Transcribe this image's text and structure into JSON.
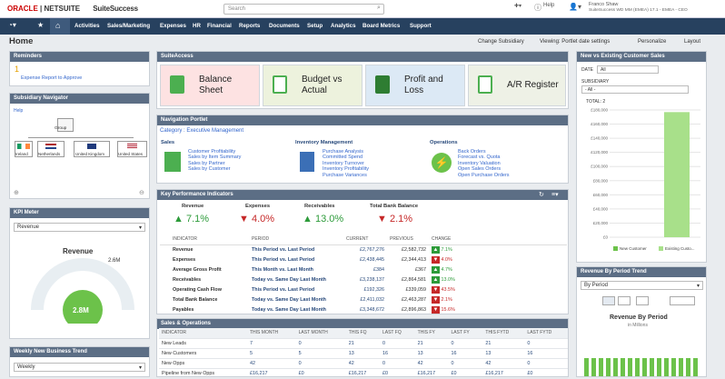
{
  "brand": {
    "oracle": "ORACLE",
    "netsuite": "NETSUITE",
    "suitesuccess": "SuiteSuccess"
  },
  "search": {
    "placeholder": "Search"
  },
  "user": {
    "help": "Help",
    "name": "Franco Shaw",
    "account": "SuiteSuccess WD MM (EMEA) 17.1 - EMEA - CEO"
  },
  "nav": [
    "Activities",
    "Sales/Marketing",
    "Expenses",
    "HR",
    "Financial",
    "Reports",
    "Documents",
    "Setup",
    "Analytics",
    "Board Metrics",
    "Support"
  ],
  "page": {
    "title": "Home",
    "change_subsidiary": "Change Subsidiary",
    "viewing": "Viewing: Portlet date settings",
    "personalize": "Personalize",
    "layout": "Layout"
  },
  "reminders": {
    "title": "Reminders",
    "count": "1",
    "text": "Expense Report to Approve"
  },
  "subsidiary": {
    "title": "Subsidiary Navigator",
    "help": "Help",
    "root": "Group",
    "children": [
      "Ireland",
      "Netherlands",
      "United Kingdom",
      "United States"
    ]
  },
  "kpimeter": {
    "title": "KPI Meter",
    "select": "Revenue",
    "gauge_title": "Revenue",
    "gauge_value": "2.8M",
    "gauge_max": "2.6M",
    "gauge_level": 0.72
  },
  "weekly": {
    "title": "Weekly New Business Trend",
    "select": "Weekly"
  },
  "suiteaccess": {
    "title": "SuiteAccess",
    "tiles": [
      "Balance Sheet",
      "Budget vs Actual",
      "Profit and Loss",
      "A/R Register"
    ]
  },
  "navportlet": {
    "title": "Navigation Portlet",
    "category": "Category : Executive Management",
    "sales": {
      "title": "Sales",
      "links": [
        "Customer Profitability",
        "Sales by Item Summary",
        "Sales by Partner",
        "Sales by Customer"
      ]
    },
    "inventory": {
      "title": "Inventory Management",
      "links": [
        "Purchase Analysis",
        "Committed Spend",
        "Inventory Turnover",
        "Inventory Profitability",
        "Purchase Variances"
      ]
    },
    "operations": {
      "title": "Operations",
      "links": [
        "Back Orders",
        "Forecast vs. Quota",
        "Inventory Valuation",
        "Open Sales Orders",
        "Open Purchase Orders"
      ]
    }
  },
  "kpi": {
    "title": "Key Performance Indicators",
    "summary": [
      {
        "label": "Revenue",
        "value": "7.1%",
        "dir": "up"
      },
      {
        "label": "Expenses",
        "value": "4.0%",
        "dir": "down"
      },
      {
        "label": "Receivables",
        "value": "13.0%",
        "dir": "up"
      },
      {
        "label": "Total Bank Balance",
        "value": "2.1%",
        "dir": "down"
      }
    ],
    "headers": [
      "INDICATOR",
      "PERIOD",
      "CURRENT",
      "PREVIOUS",
      "CHANGE"
    ],
    "rows": [
      {
        "indicator": "Revenue",
        "period": "This Period vs. Last Period",
        "current": "£2,767,276",
        "previous": "£2,582,732",
        "change": "7.1%",
        "dir": "up"
      },
      {
        "indicator": "Expenses",
        "period": "This Period vs. Last Period",
        "current": "£2,438,445",
        "previous": "£2,344,413",
        "change": "4.0%",
        "dir": "down"
      },
      {
        "indicator": "Average Gross Profit",
        "period": "This Month vs. Last Month",
        "current": "£384",
        "previous": "£367",
        "change": "4.7%",
        "dir": "up"
      },
      {
        "indicator": "Receivables",
        "period": "Today vs. Same Day Last Month",
        "current": "£3,238,137",
        "previous": "£2,864,581",
        "change": "13.0%",
        "dir": "up"
      },
      {
        "indicator": "Operating Cash Flow",
        "period": "This Period vs. Last Period",
        "current": "£192,326",
        "previous": "£339,059",
        "change": "43.5%",
        "dir": "down"
      },
      {
        "indicator": "Total Bank Balance",
        "period": "Today vs. Same Day Last Month",
        "current": "£2,411,032",
        "previous": "£2,463,287",
        "change": "2.1%",
        "dir": "down"
      },
      {
        "indicator": "Payables",
        "period": "Today vs. Same Day Last Month",
        "current": "£3,348,672",
        "previous": "£2,896,863",
        "change": "15.6%",
        "dir": "down"
      }
    ]
  },
  "salesops": {
    "title": "Sales & Operations",
    "headers": [
      "INDICATOR",
      "THIS MONTH",
      "LAST MONTH",
      "THIS FQ",
      "LAST FQ",
      "THIS FY",
      "LAST FY",
      "THIS FYTD",
      "LAST FYTD"
    ],
    "rows": [
      [
        "New Leads",
        "7",
        "0",
        "21",
        "0",
        "21",
        "0",
        "21",
        "0"
      ],
      [
        "New Customers",
        "5",
        "5",
        "13",
        "16",
        "13",
        "16",
        "13",
        "16"
      ],
      [
        "New Opps",
        "42",
        "0",
        "42",
        "0",
        "42",
        "0",
        "42",
        "0"
      ],
      [
        "Pipeline from New Opps",
        "£16,217",
        "£0",
        "£16,217",
        "£0",
        "£16,217",
        "£0",
        "£16,217",
        "£0"
      ]
    ]
  },
  "newvsexisting": {
    "title": "New vs Existing Customer Sales",
    "date_label": "DATE",
    "date_value": "All",
    "subsidiary_label": "SUBSIDIARY",
    "subsidiary_value": "- All -",
    "total": "TOTAL: 2",
    "yticks": [
      "£0",
      "£20,000",
      "£40,000",
      "£60,000",
      "£80,000",
      "£100,000",
      "£120,000",
      "£140,000",
      "£160,000",
      "£180,000"
    ],
    "legend": [
      "New Customer",
      "Existing Custo..."
    ]
  },
  "chart_data": {
    "type": "bar",
    "categories": [
      "New Customer",
      "Existing Customer"
    ],
    "values": [
      0,
      177000
    ],
    "ylim": [
      0,
      180000
    ],
    "title": "",
    "xlabel": "",
    "ylabel": ""
  },
  "revtrend": {
    "title": "Revenue By Period Trend",
    "select": "By Period",
    "chart_title": "Revenue By Period",
    "chart_sub": "in Millions"
  },
  "colors": {
    "nav": "#27415f",
    "portlet_header": "#5c6e85",
    "accent": "#2d9b3a",
    "negative": "#c62828"
  }
}
